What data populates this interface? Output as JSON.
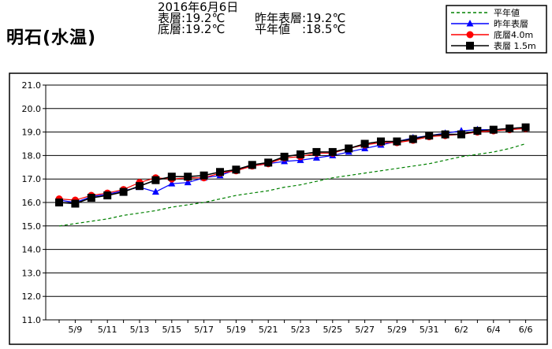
{
  "header": {
    "title": "明石(水温)",
    "date": "2016年6月6日",
    "surface": "表層:19.2℃",
    "bottom": "底層:19.2℃",
    "last_year_surface": "昨年表層:19.2℃",
    "normal": "平年値　:18.5℃"
  },
  "colors": {
    "normal": "#008000",
    "last_year": "#0000ff",
    "bottom": "#ff0000",
    "surface": "#000000",
    "grid": "#000000"
  },
  "chart_data": {
    "type": "line",
    "title": "",
    "xlabel": "",
    "ylabel": "",
    "ylim": [
      11.0,
      21.0
    ],
    "y_ticks": [
      "11.0",
      "12.0",
      "13.0",
      "14.0",
      "15.0",
      "16.0",
      "17.0",
      "18.0",
      "19.0",
      "20.0",
      "21.0"
    ],
    "x_tick_labels": [
      "5/9",
      "5/11",
      "5/13",
      "5/15",
      "5/17",
      "5/19",
      "5/21",
      "5/23",
      "5/25",
      "5/27",
      "5/29",
      "5/31",
      "6/2",
      "6/4",
      "6/6"
    ],
    "x": [
      "5/8",
      "5/9",
      "5/10",
      "5/11",
      "5/12",
      "5/13",
      "5/14",
      "5/15",
      "5/16",
      "5/17",
      "5/18",
      "5/19",
      "5/20",
      "5/21",
      "5/22",
      "5/23",
      "5/24",
      "5/25",
      "5/26",
      "5/27",
      "5/28",
      "5/29",
      "5/30",
      "5/31",
      "6/1",
      "6/2",
      "6/3",
      "6/4",
      "6/5",
      "6/6"
    ],
    "grid": true,
    "legend_position": "top-right",
    "series": [
      {
        "name": "平年値",
        "style": "dashed",
        "values": [
          15.0,
          15.1,
          15.2,
          15.3,
          15.45,
          15.55,
          15.65,
          15.8,
          15.9,
          16.0,
          16.15,
          16.3,
          16.4,
          16.5,
          16.65,
          16.75,
          16.9,
          17.05,
          17.15,
          17.25,
          17.35,
          17.45,
          17.55,
          17.65,
          17.8,
          17.95,
          18.05,
          18.15,
          18.3,
          18.5
        ]
      },
      {
        "name": "昨年表層",
        "marker": "triangle",
        "values": [
          16.1,
          16.0,
          16.25,
          16.35,
          16.5,
          16.65,
          16.45,
          16.8,
          16.85,
          17.05,
          17.15,
          17.4,
          17.55,
          17.65,
          17.75,
          17.8,
          17.9,
          18.0,
          18.15,
          18.3,
          18.45,
          18.6,
          18.75,
          18.85,
          18.95,
          19.05,
          19.1,
          19.1,
          19.15,
          19.2
        ]
      },
      {
        "name": "底層4.0m",
        "marker": "circle",
        "values": [
          16.15,
          16.1,
          16.3,
          16.4,
          16.55,
          16.85,
          17.05,
          17.0,
          17.05,
          17.05,
          17.25,
          17.35,
          17.55,
          17.65,
          17.9,
          17.95,
          18.1,
          18.1,
          18.3,
          18.45,
          18.55,
          18.55,
          18.65,
          18.8,
          18.85,
          18.9,
          19.0,
          19.05,
          19.1,
          19.15
        ]
      },
      {
        "name": "表層 1.5m",
        "marker": "square",
        "values": [
          16.0,
          15.95,
          16.2,
          16.3,
          16.45,
          16.7,
          16.95,
          17.1,
          17.1,
          17.15,
          17.3,
          17.4,
          17.6,
          17.7,
          17.95,
          18.05,
          18.15,
          18.15,
          18.3,
          18.5,
          18.6,
          18.6,
          18.7,
          18.85,
          18.9,
          18.9,
          19.05,
          19.1,
          19.15,
          19.2
        ]
      }
    ]
  }
}
